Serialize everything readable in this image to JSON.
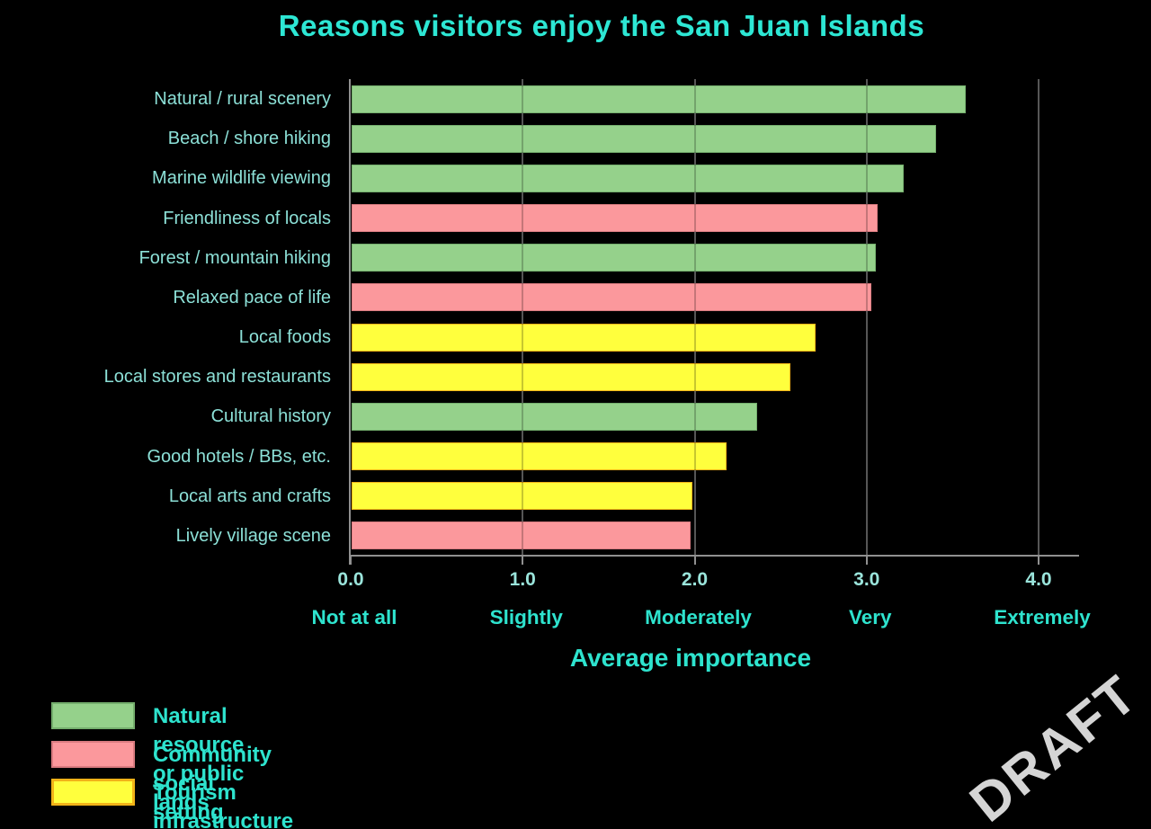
{
  "title": "Reasons visitors enjoy the San Juan Islands",
  "watermark": "DRAFT",
  "colors": {
    "background": "#000000",
    "title_text": "#2DE7D4",
    "category_text": "#8CE0D7",
    "tick_text": "#9AE4DB",
    "word_text": "#2EE3CE",
    "gridline": "#6F6F6F",
    "axis_line": "#909090",
    "watermark_text": "#D5D5D5"
  },
  "chart_data": {
    "type": "bar",
    "orientation": "horizontal",
    "title": "Reasons visitors enjoy the San Juan Islands",
    "xlabel": "Average importance",
    "xlim": [
      0,
      4
    ],
    "xticks": [
      "0.0",
      "1.0",
      "2.0",
      "3.0",
      "4.0"
    ],
    "xtick_words": [
      "Not at all",
      "Slightly",
      "Moderately",
      "Very",
      "Extremely"
    ],
    "grid": "vertical gridlines at each whole unit, black plot background",
    "categories": [
      "Natural / rural scenery",
      "Beach / shore hiking",
      "Marine wildlife viewing",
      "Friendliness of locals",
      "Forest / mountain hiking",
      "Relaxed pace of life",
      "Local foods",
      "Local stores and restaurants",
      "Cultural history",
      "Good hotels / BBs, etc.",
      "Local arts and crafts",
      "Lively village scene"
    ],
    "values": [
      3.57,
      3.4,
      3.21,
      3.06,
      3.05,
      3.02,
      2.7,
      2.55,
      2.36,
      2.18,
      1.98,
      1.97
    ],
    "groups": [
      "natural",
      "natural",
      "natural",
      "community",
      "natural",
      "community",
      "tourism",
      "tourism",
      "natural",
      "tourism",
      "tourism",
      "community"
    ],
    "group_colors": {
      "natural": "#95D18B",
      "community": "#FB989C",
      "tourism": "#FFFF3D"
    },
    "group_border_colors": {
      "natural": "#74AE6D",
      "community": "#D97B80",
      "tourism": "#F2B318"
    },
    "legend": {
      "position": "bottom-left",
      "entries": [
        {
          "group": "natural",
          "label": "Natural resource or public lands",
          "color": "#95D18B",
          "border": "#74AE6D"
        },
        {
          "group": "community",
          "label": "Community  social  setting",
          "color": "#FB989C",
          "border": "#D97B80"
        },
        {
          "group": "tourism",
          "label": "Tourism infrastructure",
          "color": "#FFFF3D",
          "border": "#F2B318"
        }
      ]
    }
  }
}
